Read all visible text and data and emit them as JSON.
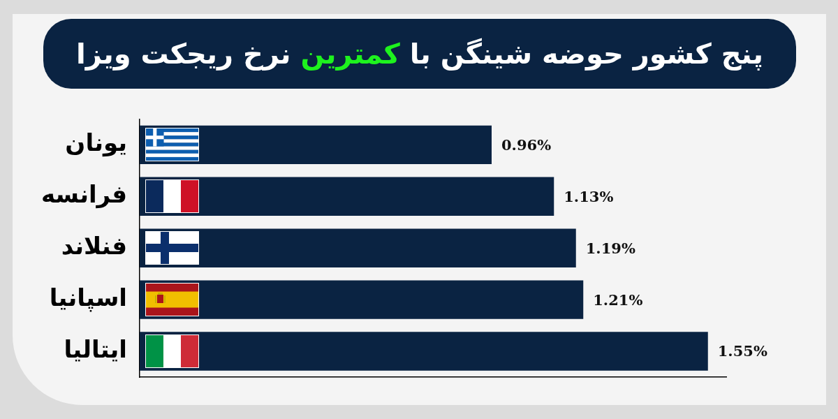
{
  "chart_data": {
    "type": "bar",
    "orientation": "horizontal",
    "title": "پنج کشور حوضه شینگن با کمترین نرخ ریجکت ویزا",
    "categories": [
      "یونان",
      "فرانسه",
      "فنلاند",
      "اسپانیا",
      "ایتالیا"
    ],
    "values": [
      0.96,
      1.13,
      1.19,
      1.21,
      1.55
    ],
    "value_labels": [
      "0.96%",
      "1.13%",
      "1.19%",
      "1.21%",
      "1.55%"
    ],
    "color": "#0a2342",
    "tick_labels": "y",
    "grid": false,
    "legend": false
  }
}
